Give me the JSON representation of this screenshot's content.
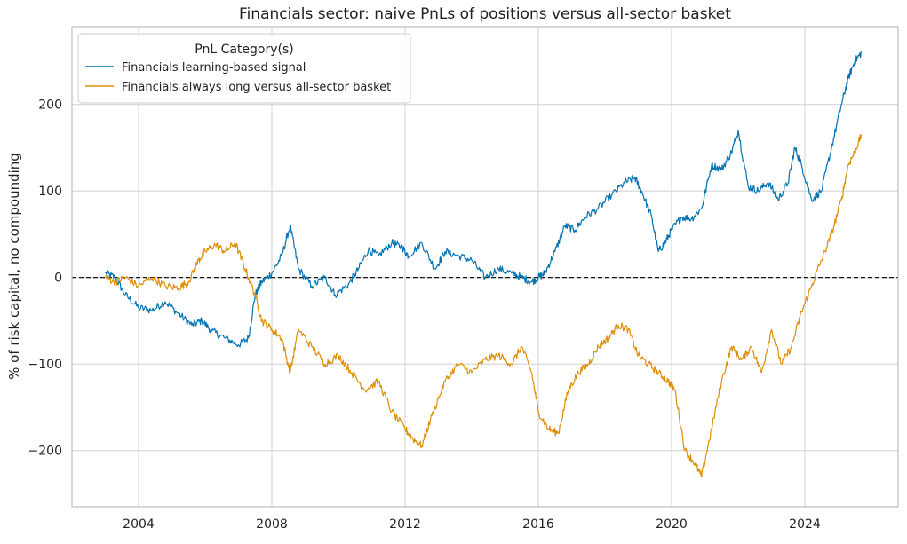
{
  "chart_data": {
    "type": "line",
    "title": "Financials sector: naive PnLs of positions versus all-sector basket",
    "xlabel": "",
    "ylabel": "% of risk capital, no compounding",
    "xlim": [
      2002.0,
      2026.8
    ],
    "ylim": [
      -265,
      290
    ],
    "x_ticks": [
      2004,
      2008,
      2012,
      2016,
      2020,
      2024
    ],
    "x_tick_labels": [
      "2004",
      "2008",
      "2012",
      "2016",
      "2020",
      "2024"
    ],
    "y_ticks": [
      -200,
      -100,
      0,
      100,
      200
    ],
    "y_tick_labels": [
      "−200",
      "−100",
      "0",
      "100",
      "200"
    ],
    "grid": true,
    "reference_line": {
      "y": 0,
      "style": "dashed",
      "color": "#000000"
    },
    "legend": {
      "title": "PnL Category(s)",
      "position": "top-left"
    },
    "series": [
      {
        "name": "Financials learning-based signal",
        "color": "#0173b2",
        "x": [
          2003.0,
          2003.3,
          2003.6,
          2004.0,
          2004.4,
          2004.8,
          2005.2,
          2005.6,
          2005.9,
          2006.2,
          2006.6,
          2007.0,
          2007.3,
          2007.5,
          2007.7,
          2008.0,
          2008.3,
          2008.55,
          2008.8,
          2009.2,
          2009.6,
          2009.9,
          2010.3,
          2010.6,
          2010.9,
          2011.2,
          2011.6,
          2011.9,
          2012.1,
          2012.5,
          2012.9,
          2013.2,
          2013.6,
          2014.0,
          2014.4,
          2014.8,
          2015.2,
          2015.5,
          2015.8,
          2016.0,
          2016.2,
          2016.5,
          2016.8,
          2017.1,
          2017.4,
          2017.8,
          2018.2,
          2018.6,
          2018.9,
          2019.1,
          2019.4,
          2019.6,
          2019.8,
          2020.0,
          2020.3,
          2020.6,
          2020.9,
          2021.2,
          2021.5,
          2021.8,
          2022.0,
          2022.3,
          2022.6,
          2022.9,
          2023.2,
          2023.5,
          2023.7,
          2023.9,
          2024.2,
          2024.5,
          2024.8,
          2025.1,
          2025.3,
          2025.5,
          2025.7
        ],
        "values": [
          5,
          0,
          -20,
          -35,
          -38,
          -28,
          -42,
          -55,
          -50,
          -62,
          -70,
          -78,
          -70,
          -20,
          -5,
          5,
          25,
          60,
          10,
          -10,
          0,
          -20,
          -8,
          10,
          32,
          25,
          40,
          35,
          25,
          40,
          10,
          30,
          25,
          20,
          0,
          10,
          5,
          0,
          -5,
          0,
          5,
          30,
          60,
          55,
          70,
          80,
          95,
          110,
          115,
          100,
          70,
          30,
          40,
          55,
          70,
          68,
          80,
          130,
          125,
          145,
          170,
          105,
          100,
          110,
          90,
          110,
          150,
          130,
          90,
          100,
          150,
          200,
          230,
          250,
          260
        ]
      },
      {
        "name": "Financials always long versus all-sector basket",
        "color": "#de8f05",
        "x": [
          2003.0,
          2003.3,
          2003.6,
          2004.0,
          2004.4,
          2004.8,
          2005.2,
          2005.5,
          2005.8,
          2006.0,
          2006.3,
          2006.6,
          2006.9,
          2007.2,
          2007.5,
          2007.7,
          2008.0,
          2008.3,
          2008.55,
          2008.8,
          2009.2,
          2009.6,
          2010.0,
          2010.4,
          2010.8,
          2011.2,
          2011.6,
          2012.0,
          2012.2,
          2012.5,
          2012.8,
          2013.2,
          2013.6,
          2014.0,
          2014.4,
          2014.8,
          2015.2,
          2015.5,
          2015.8,
          2016.0,
          2016.3,
          2016.6,
          2016.9,
          2017.2,
          2017.5,
          2017.8,
          2018.1,
          2018.4,
          2018.7,
          2019.0,
          2019.3,
          2019.6,
          2019.9,
          2020.1,
          2020.4,
          2020.7,
          2020.9,
          2021.2,
          2021.5,
          2021.8,
          2022.1,
          2022.4,
          2022.7,
          2023.0,
          2023.3,
          2023.6,
          2023.9,
          2024.2,
          2024.5,
          2024.8,
          2025.1,
          2025.3,
          2025.5,
          2025.7
        ],
        "values": [
          0,
          -5,
          0,
          -10,
          0,
          -10,
          -12,
          -5,
          20,
          30,
          38,
          30,
          40,
          10,
          -20,
          -50,
          -60,
          -70,
          -110,
          -60,
          -80,
          -100,
          -90,
          -110,
          -130,
          -120,
          -155,
          -175,
          -185,
          -195,
          -160,
          -120,
          -100,
          -110,
          -95,
          -90,
          -100,
          -80,
          -110,
          -155,
          -175,
          -180,
          -130,
          -110,
          -100,
          -80,
          -70,
          -55,
          -60,
          -90,
          -100,
          -110,
          -120,
          -130,
          -200,
          -215,
          -230,
          -175,
          -120,
          -80,
          -95,
          -80,
          -110,
          -60,
          -100,
          -80,
          -40,
          -10,
          20,
          50,
          90,
          130,
          145,
          165
        ]
      }
    ]
  }
}
